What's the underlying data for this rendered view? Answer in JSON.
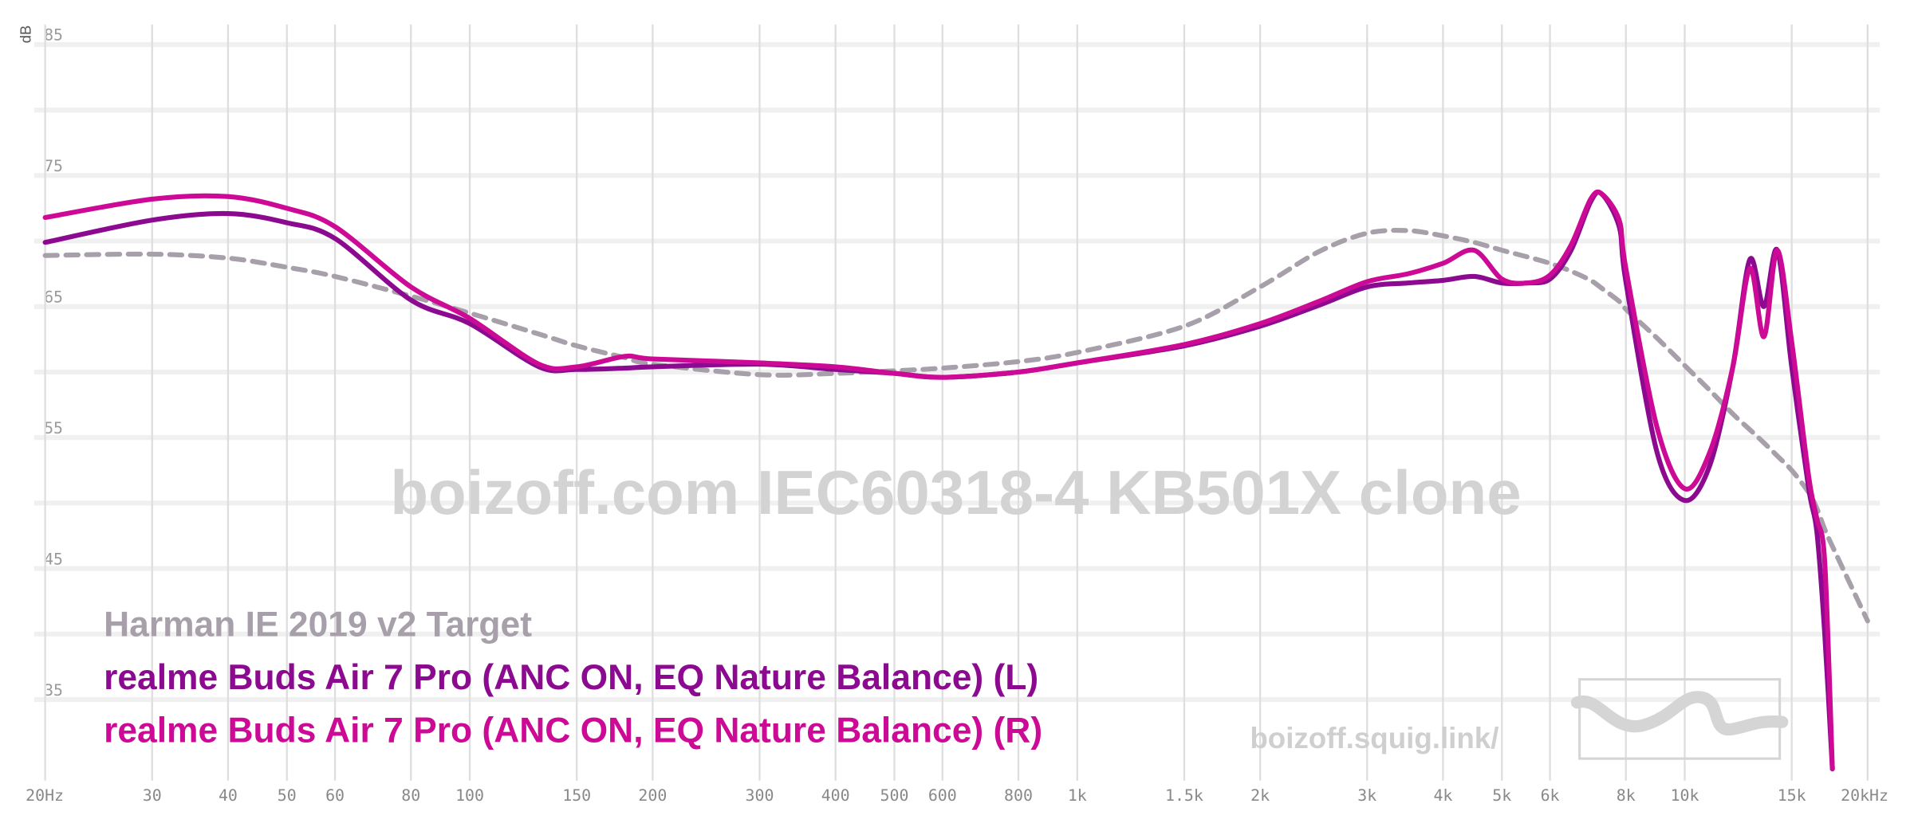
{
  "chart_data": {
    "type": "line",
    "y_label": "dB",
    "watermark": "boizoff.com IEC60318-4 KB501X clone",
    "site": "boizoff.squig.link/",
    "x_scale": "log",
    "xlim": [
      20,
      20000
    ],
    "ylim": [
      29,
      87
    ],
    "yticks": [
      35,
      45,
      55,
      65,
      75,
      85
    ],
    "ygrid": [
      35,
      40,
      45,
      50,
      55,
      60,
      65,
      70,
      75,
      80,
      85
    ],
    "xticks": [
      {
        "value": 20,
        "label": "20Hz"
      },
      30,
      40,
      50,
      60,
      80,
      100,
      150,
      200,
      300,
      400,
      500,
      600,
      800,
      {
        "value": 1000,
        "label": "1k"
      },
      {
        "value": 1500,
        "label": "1.5k"
      },
      {
        "value": 2000,
        "label": "2k"
      },
      {
        "value": 3000,
        "label": "3k"
      },
      {
        "value": 4000,
        "label": "4k"
      },
      {
        "value": 5000,
        "label": "5k"
      },
      {
        "value": 6000,
        "label": "6k"
      },
      {
        "value": 8000,
        "label": "8k"
      },
      {
        "value": 10000,
        "label": "10k"
      },
      {
        "value": 15000,
        "label": "15k"
      },
      {
        "value": 20000,
        "label": "20kHz"
      }
    ],
    "grid": true,
    "x": [
      20,
      30,
      40,
      50,
      60,
      80,
      100,
      130,
      150,
      180,
      200,
      300,
      400,
      500,
      600,
      800,
      1000,
      1500,
      2000,
      2500,
      3000,
      3500,
      4000,
      4500,
      5000,
      5500,
      6000,
      6500,
      7000,
      7300,
      7800,
      8000,
      9000,
      10000,
      11000,
      12000,
      12800,
      13500,
      14200,
      15000,
      16000,
      16500,
      17000,
      17500,
      20000
    ],
    "series": [
      {
        "name": "Harman IE 2019 v2 Target",
        "color": "#a79fa9",
        "dashed": true,
        "values": [
          68.9,
          69.0,
          68.7,
          68.0,
          67.3,
          65.8,
          64.5,
          62.9,
          62.0,
          61.1,
          60.6,
          59.8,
          59.9,
          60.1,
          60.3,
          60.8,
          61.5,
          63.5,
          66.5,
          69.2,
          70.6,
          70.8,
          70.4,
          69.9,
          69.3,
          68.8,
          68.3,
          67.7,
          67.0,
          66.4,
          65.4,
          64.8,
          62.6,
          60.5,
          58.6,
          56.8,
          55.6,
          54.6,
          53.6,
          52.5,
          50.8,
          49.6,
          48.0,
          46.7,
          41.0
        ]
      },
      {
        "name": "realme Buds Air 7 Pro (ANC ON, EQ Nature Balance) (L)",
        "color": "#8b0a8f",
        "dashed": false,
        "values": [
          69.9,
          71.6,
          72.1,
          71.4,
          70.2,
          65.5,
          63.7,
          60.4,
          60.2,
          60.3,
          60.4,
          60.6,
          60.2,
          59.9,
          59.6,
          60.0,
          60.7,
          62.0,
          63.5,
          65.1,
          66.5,
          66.8,
          67.0,
          67.3,
          66.8,
          66.8,
          67.1,
          69.3,
          73.0,
          73.6,
          71.1,
          66.9,
          53.9,
          50.2,
          52.9,
          60.4,
          68.6,
          65.0,
          69.3,
          60.4,
          51.1,
          47.8,
          40.0,
          29.7,
          null
        ]
      },
      {
        "name": "realme Buds Air 7 Pro (ANC ON, EQ Nature Balance) (R)",
        "color": "#cc0a96",
        "dashed": false,
        "values": [
          71.8,
          73.2,
          73.4,
          72.5,
          71.1,
          66.5,
          64.1,
          60.6,
          60.4,
          61.2,
          61.0,
          60.7,
          60.4,
          59.9,
          59.6,
          60.0,
          60.7,
          62.1,
          63.7,
          65.4,
          66.9,
          67.5,
          68.3,
          69.3,
          67.1,
          66.8,
          67.4,
          69.7,
          73.2,
          73.6,
          71.6,
          67.9,
          55.8,
          51.1,
          53.9,
          60.4,
          67.9,
          62.7,
          69.3,
          62.3,
          52.0,
          48.8,
          45.5,
          29.7,
          null
        ]
      }
    ]
  }
}
